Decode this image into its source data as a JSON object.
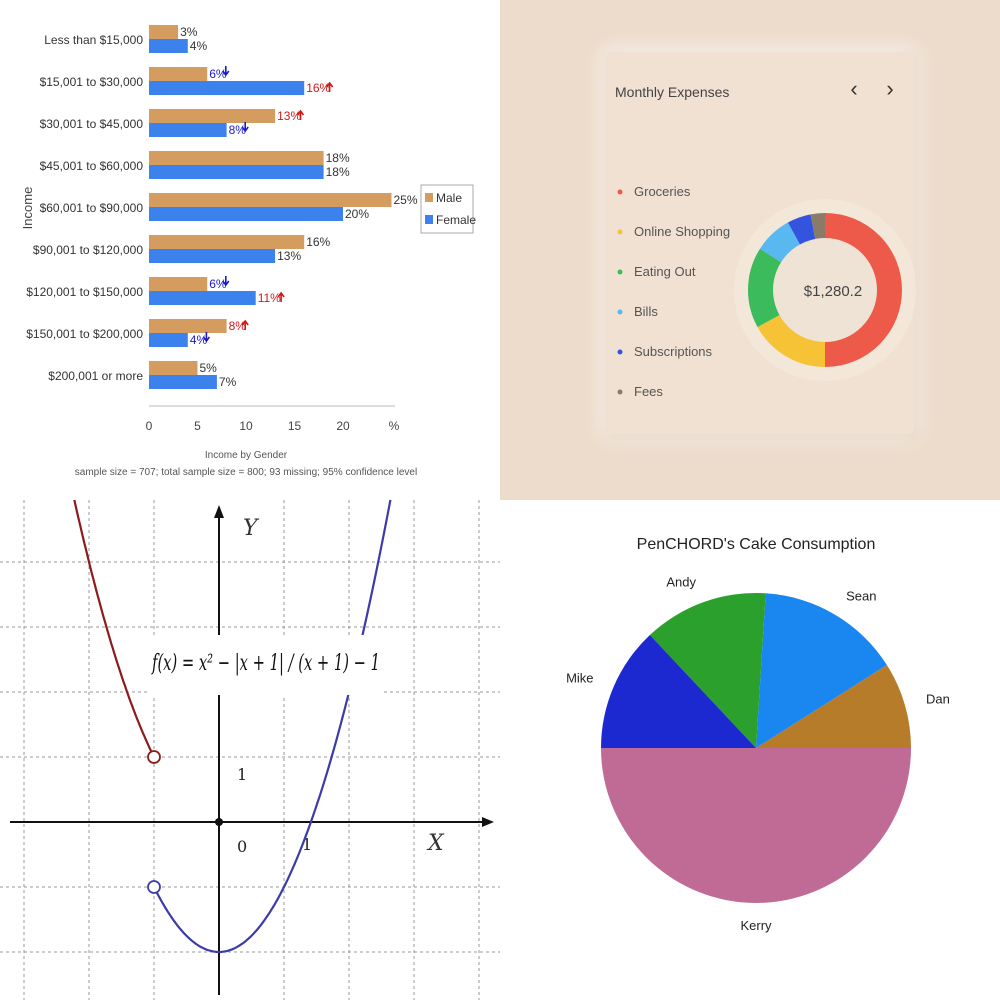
{
  "colors": {
    "male": "#d49c5e",
    "female": "#3b82ec",
    "up_arrow": "#d01818",
    "down_arrow": "#1a1acc",
    "curve_left": "#8a1c1c",
    "curve_right": "#3c3ca8",
    "card_bg": "#f0e1d2"
  },
  "income_chart": {
    "chart_data": {
      "type": "bar",
      "orientation": "horizontal",
      "categories": [
        "Less than $15,000",
        "$15,001 to $30,000",
        "$30,001 to $45,000",
        "$45,001 to $60,000",
        "$60,001 to $90,000",
        "$90,001 to $120,000",
        "$120,001 to $150,000",
        "$150,001 to $200,000",
        "$200,001 or more"
      ],
      "series": [
        {
          "name": "Male",
          "values": [
            3,
            6,
            13,
            18,
            25,
            16,
            6,
            8,
            5
          ],
          "labels": [
            "3%",
            "6%",
            "13%",
            "18%",
            "25%",
            "16%",
            "6%",
            "8%",
            "5%"
          ],
          "trend": [
            "",
            "down",
            "up",
            "",
            "",
            "",
            "down",
            "up",
            ""
          ]
        },
        {
          "name": "Female",
          "values": [
            4,
            16,
            8,
            18,
            20,
            13,
            11,
            4,
            7
          ],
          "labels": [
            "4%",
            "16%",
            "8%",
            "18%",
            "20%",
            "13%",
            "11%",
            "4%",
            "7%"
          ],
          "trend": [
            "",
            "up",
            "down",
            "",
            "",
            "",
            "up",
            "down",
            ""
          ]
        }
      ],
      "xlim": [
        0,
        25
      ],
      "xticks": [
        "0",
        "5",
        "10",
        "15",
        "20",
        "%"
      ],
      "ylabel": "Income",
      "xlabel": "Income by Gender",
      "subtitle": "sample size = 707; total sample size = 800; 93 missing; 95% confidence level",
      "legend_position": "right",
      "grid": false
    }
  },
  "expenses": {
    "title": "Monthly Expenses",
    "prev_glyph": "‹",
    "next_glyph": "›",
    "total": "$1,280.2",
    "chart_data": {
      "type": "pie",
      "donut": true,
      "categories": [
        "Groceries",
        "Online Shopping",
        "Eating Out",
        "Bills",
        "Subscriptions",
        "Fees"
      ],
      "values": [
        50,
        17,
        17,
        8,
        5,
        3
      ],
      "colors": [
        "#ee5a4a",
        "#f6c236",
        "#3cbb5c",
        "#5ab8f0",
        "#3454e0",
        "#8a7a6a"
      ],
      "legend_position": "left"
    }
  },
  "function_plot": {
    "chart_data": {
      "type": "line",
      "ylabel": "Y",
      "xlabel": "X",
      "formula": "f(x) = x² − |x + 1| / (x + 1) − 1",
      "tick_labels": {
        "origin": "0",
        "x_one": "1",
        "y_one": "1"
      },
      "xlim": [
        -3.3,
        4.3
      ],
      "ylim": [
        -2.0,
        4.7
      ],
      "grid": true,
      "series": [
        {
          "name": "",
          "domain": [
            -3.25,
            -1
          ],
          "expression": "x^2",
          "open_end": [
            -1,
            1
          ]
        },
        {
          "name": "",
          "domain": [
            -1,
            3.25
          ],
          "expression": "x^2 - 2",
          "open_end": [
            -1,
            -1
          ]
        }
      ]
    }
  },
  "cake": {
    "chart_data": {
      "type": "pie",
      "title": "PenCHORD's Cake Consumption",
      "categories": [
        "Dan",
        "Sean",
        "Andy",
        "Mike",
        "Kerry"
      ],
      "values": [
        9,
        15,
        13,
        13,
        50
      ],
      "colors": [
        "#b77c2a",
        "#1a86f0",
        "#2ca02c",
        "#1c28d0",
        "#c06a96"
      ],
      "start_angle_deg": 0,
      "direction": "counterclockwise"
    }
  }
}
